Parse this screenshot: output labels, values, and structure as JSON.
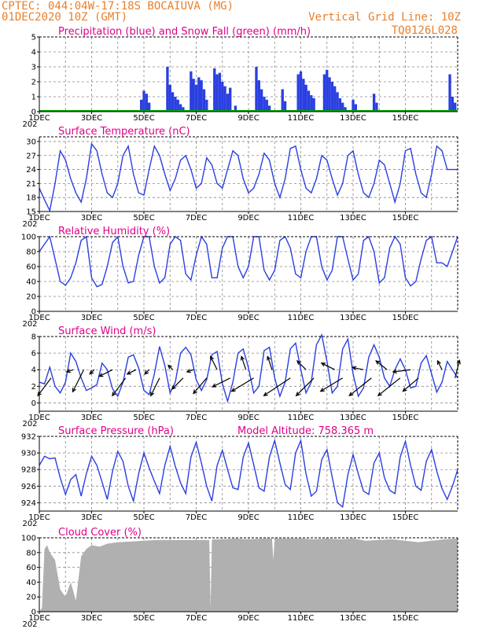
{
  "header": {
    "station": "CPTEC:  044:04W-17:18S  BOCAIUVA (MG)",
    "run": "01DEC2020 10Z (GMT)",
    "grid_note": "Vertical Grid Line: 10Z",
    "model": "TQ0126L028",
    "year_stub": "202"
  },
  "colors": {
    "header": "#e87f2a",
    "title": "#e0008a",
    "line": "#2a3fe0",
    "precip": "#2a3fe0",
    "snow": "#00aa00",
    "cloud": "#b0b0b0"
  },
  "x_ticks": [
    "1DEC",
    "3DEC",
    "5DEC",
    "7DEC",
    "9DEC",
    "11DEC",
    "13DEC",
    "15DEC"
  ],
  "chart_data": [
    {
      "id": "precip",
      "type": "bar",
      "title": "Precipitation (blue) and Snow Fall (green) (mm/h)",
      "ylim": [
        0,
        5
      ],
      "yticks": [
        0,
        1,
        2,
        3,
        4,
        5
      ],
      "x": [
        3.9,
        4.0,
        4.1,
        4.2,
        4.9,
        5.0,
        5.1,
        5.2,
        5.3,
        5.4,
        5.5,
        5.8,
        5.9,
        6.0,
        6.1,
        6.2,
        6.3,
        6.4,
        6.7,
        6.8,
        6.9,
        7.0,
        7.1,
        7.2,
        7.3,
        7.5,
        8.3,
        8.4,
        8.5,
        8.6,
        8.7,
        8.8,
        9.3,
        9.4,
        9.9,
        10.0,
        10.1,
        10.2,
        10.3,
        10.4,
        10.5,
        10.9,
        11.0,
        11.1,
        11.2,
        11.3,
        11.4,
        11.5,
        11.6,
        11.7,
        12.0,
        12.1,
        12.8,
        12.9,
        15.7,
        15.8,
        15.9
      ],
      "values": [
        0.8,
        1.4,
        1.2,
        0.6,
        3.0,
        1.8,
        1.3,
        1.0,
        0.8,
        0.5,
        0.3,
        2.7,
        2.2,
        1.8,
        2.3,
        2.1,
        1.5,
        0.8,
        2.9,
        2.5,
        2.6,
        2.0,
        1.7,
        1.2,
        1.6,
        0.4,
        3.0,
        2.1,
        1.5,
        1.0,
        0.8,
        0.4,
        1.5,
        0.7,
        2.5,
        2.7,
        2.2,
        1.8,
        1.4,
        1.1,
        0.9,
        2.5,
        2.8,
        2.3,
        2.0,
        1.7,
        1.3,
        0.9,
        0.6,
        0.3,
        0.8,
        0.5,
        1.2,
        0.6,
        2.5,
        1.0,
        0.6
      ],
      "snow": 0
    },
    {
      "id": "temp",
      "type": "line",
      "title": "Surface Temperature (nC)",
      "ylim": [
        15,
        31
      ],
      "yticks": [
        15,
        18,
        21,
        24,
        27,
        30
      ],
      "x": [
        0,
        0.2,
        0.4,
        0.6,
        0.8,
        1.0,
        1.2,
        1.4,
        1.6,
        1.8,
        2.0,
        2.2,
        2.4,
        2.6,
        2.8,
        3.0,
        3.2,
        3.4,
        3.6,
        3.8,
        4.0,
        4.2,
        4.4,
        4.6,
        4.8,
        5.0,
        5.2,
        5.4,
        5.6,
        5.8,
        6.0,
        6.2,
        6.4,
        6.6,
        6.8,
        7.0,
        7.2,
        7.4,
        7.6,
        7.8,
        8.0,
        8.2,
        8.4,
        8.6,
        8.8,
        9.0,
        9.2,
        9.4,
        9.6,
        9.8,
        10.0,
        10.2,
        10.4,
        10.6,
        10.8,
        11.0,
        11.2,
        11.4,
        11.6,
        11.8,
        12.0,
        12.2,
        12.4,
        12.6,
        12.8,
        13.0,
        13.2,
        13.4,
        13.6,
        13.8,
        14.0,
        14.2,
        14.4,
        14.6,
        14.8,
        15.0,
        15.2,
        15.4,
        15.6,
        15.8,
        16.0
      ],
      "values": [
        20,
        17.5,
        15.2,
        21,
        28,
        26,
        22,
        19,
        17,
        22,
        29.5,
        28,
        23,
        19,
        18,
        21,
        27,
        29,
        23,
        19,
        18.5,
        24,
        29,
        27,
        23,
        19.5,
        22,
        26,
        27,
        24,
        20,
        21,
        26.5,
        25,
        21,
        20,
        24,
        28,
        27,
        22,
        19,
        20,
        23,
        27.5,
        26,
        21,
        18,
        22,
        28.5,
        29,
        24,
        20,
        19,
        22,
        27,
        26,
        22,
        18.5,
        21,
        27,
        28,
        23,
        19,
        18,
        21,
        26,
        25,
        21,
        17,
        21,
        28,
        28.5,
        23,
        19,
        18,
        23,
        29,
        28,
        24,
        24,
        24
      ]
    },
    {
      "id": "rh",
      "type": "line",
      "title": "Relative Humidity (%)",
      "ylim": [
        0,
        100
      ],
      "yticks": [
        0,
        20,
        40,
        60,
        80,
        100
      ],
      "x": [
        0,
        0.2,
        0.4,
        0.6,
        0.8,
        1.0,
        1.2,
        1.4,
        1.6,
        1.8,
        2.0,
        2.2,
        2.4,
        2.6,
        2.8,
        3.0,
        3.2,
        3.4,
        3.6,
        3.8,
        4.0,
        4.2,
        4.4,
        4.6,
        4.8,
        5.0,
        5.2,
        5.4,
        5.6,
        5.8,
        6.0,
        6.2,
        6.4,
        6.6,
        6.8,
        7.0,
        7.2,
        7.4,
        7.6,
        7.8,
        8.0,
        8.2,
        8.4,
        8.6,
        8.8,
        9.0,
        9.2,
        9.4,
        9.6,
        9.8,
        10.0,
        10.2,
        10.4,
        10.6,
        10.8,
        11.0,
        11.2,
        11.4,
        11.6,
        11.8,
        12.0,
        12.2,
        12.4,
        12.6,
        12.8,
        13.0,
        13.2,
        13.4,
        13.6,
        13.8,
        14.0,
        14.2,
        14.4,
        14.6,
        14.8,
        15.0,
        15.2,
        15.4,
        15.6,
        15.8,
        16.0
      ],
      "values": [
        80,
        90,
        100,
        70,
        40,
        35,
        45,
        65,
        95,
        100,
        45,
        33,
        36,
        60,
        92,
        100,
        60,
        38,
        40,
        75,
        100,
        100,
        60,
        38,
        45,
        90,
        100,
        95,
        50,
        42,
        75,
        100,
        90,
        45,
        45,
        85,
        100,
        100,
        60,
        45,
        60,
        100,
        100,
        55,
        42,
        55,
        95,
        100,
        85,
        50,
        45,
        80,
        100,
        100,
        60,
        42,
        55,
        100,
        100,
        70,
        42,
        50,
        95,
        100,
        80,
        38,
        45,
        85,
        100,
        90,
        45,
        34,
        40,
        70,
        95,
        100,
        65,
        65,
        60,
        80,
        100
      ]
    },
    {
      "id": "wind",
      "type": "line",
      "title": "Surface Wind (m/s)",
      "ylim": [
        -1,
        8
      ],
      "yticks": [
        0,
        2,
        4,
        6,
        8
      ],
      "x": [
        0,
        0.2,
        0.4,
        0.6,
        0.8,
        1.0,
        1.2,
        1.4,
        1.6,
        1.8,
        2.0,
        2.2,
        2.4,
        2.6,
        2.8,
        3.0,
        3.2,
        3.4,
        3.6,
        3.8,
        4.0,
        4.2,
        4.4,
        4.6,
        4.8,
        5.0,
        5.2,
        5.4,
        5.6,
        5.8,
        6.0,
        6.2,
        6.4,
        6.6,
        6.8,
        7.0,
        7.2,
        7.4,
        7.6,
        7.8,
        8.0,
        8.2,
        8.4,
        8.6,
        8.8,
        9.0,
        9.2,
        9.4,
        9.6,
        9.8,
        10.0,
        10.2,
        10.4,
        10.6,
        10.8,
        11.0,
        11.2,
        11.4,
        11.6,
        11.8,
        12.0,
        12.2,
        12.4,
        12.6,
        12.8,
        13.0,
        13.2,
        13.4,
        13.6,
        13.8,
        14.0,
        14.2,
        14.4,
        14.6,
        14.8,
        15.0,
        15.2,
        15.4,
        15.6,
        15.8,
        16.0
      ],
      "values": [
        2.5,
        2.3,
        4.3,
        2.0,
        1.2,
        2.5,
        6.0,
        5.0,
        3.0,
        1.5,
        1.8,
        2.2,
        4.8,
        4.0,
        1.7,
        0.8,
        2.5,
        5.5,
        5.8,
        4.2,
        1.5,
        1.0,
        3.5,
        6.8,
        4.5,
        1.2,
        2.5,
        6.0,
        6.7,
        5.8,
        2.8,
        1.5,
        2.8,
        5.8,
        6.2,
        2.3,
        0.2,
        2.5,
        6.0,
        6.5,
        4.2,
        1.2,
        2.0,
        6.3,
        6.7,
        3.0,
        0.8,
        2.5,
        6.5,
        7.2,
        4.0,
        1.2,
        2.5,
        7.0,
        8.2,
        5.0,
        1.2,
        2.0,
        6.5,
        7.7,
        3.5,
        0.8,
        1.8,
        5.5,
        7.0,
        5.5,
        3.0,
        2.0,
        4.0,
        5.3,
        4.0,
        1.8,
        2.0,
        4.8,
        5.7,
        3.5,
        1.3,
        2.5,
        5.0,
        4.0,
        3.0
      ],
      "arrows": [
        {
          "x": 0.45,
          "s": 3,
          "dx": -0.6,
          "dy": 0.8
        },
        {
          "x": 1.3,
          "s": 4,
          "dx": -0.3,
          "dy": 0.1
        },
        {
          "x": 1.7,
          "s": 4,
          "dx": -0.5,
          "dy": 1.0
        },
        {
          "x": 2.1,
          "s": 4,
          "dx": -0.2,
          "dy": 0.2
        },
        {
          "x": 2.8,
          "s": 4,
          "dx": -0.6,
          "dy": 0.3
        },
        {
          "x": 3.3,
          "s": 3,
          "dx": -0.6,
          "dy": 0.8
        },
        {
          "x": 3.7,
          "s": 4,
          "dx": -0.4,
          "dy": 0.2
        },
        {
          "x": 4.2,
          "s": 4,
          "dx": -0.2,
          "dy": 0.2
        },
        {
          "x": 4.6,
          "s": 3,
          "dx": -0.4,
          "dy": 0.8
        },
        {
          "x": 5.1,
          "s": 4,
          "dx": -0.2,
          "dy": -0.2
        },
        {
          "x": 5.5,
          "s": 3,
          "dx": -0.5,
          "dy": 0.5
        },
        {
          "x": 5.9,
          "s": 4,
          "dx": -0.3,
          "dy": 0.1
        },
        {
          "x": 6.4,
          "s": 3,
          "dx": -0.6,
          "dy": 0.7
        },
        {
          "x": 6.8,
          "s": 4,
          "dx": -0.3,
          "dy": -0.6
        },
        {
          "x": 7.3,
          "s": 3,
          "dx": -0.8,
          "dy": 0.4
        },
        {
          "x": 7.9,
          "s": 4,
          "dx": -0.2,
          "dy": -0.6
        },
        {
          "x": 8.2,
          "s": 3,
          "dx": -1.0,
          "dy": 0.6
        },
        {
          "x": 8.9,
          "s": 4,
          "dx": -0.2,
          "dy": -0.6
        },
        {
          "x": 9.6,
          "s": 3,
          "dx": -1.2,
          "dy": 0.8
        },
        {
          "x": 10.2,
          "s": 4,
          "dx": -0.4,
          "dy": -0.4
        },
        {
          "x": 10.5,
          "s": 3,
          "dx": -0.8,
          "dy": 0.8
        },
        {
          "x": 11.3,
          "s": 4,
          "dx": -0.6,
          "dy": -0.3
        },
        {
          "x": 11.6,
          "s": 3,
          "dx": -1.0,
          "dy": 0.6
        },
        {
          "x": 12.4,
          "s": 4,
          "dx": -0.5,
          "dy": -0.1
        },
        {
          "x": 12.7,
          "s": 3,
          "dx": -1.0,
          "dy": 0.8
        },
        {
          "x": 13.3,
          "s": 4,
          "dx": -0.5,
          "dy": -0.4
        },
        {
          "x": 13.8,
          "s": 3,
          "dx": -1.0,
          "dy": 0.8
        },
        {
          "x": 14.2,
          "s": 4,
          "dx": -0.8,
          "dy": 0.1
        },
        {
          "x": 14.5,
          "s": 3,
          "dx": -0.7,
          "dy": 0.6
        },
        {
          "x": 15.4,
          "s": 4,
          "dx": -0.2,
          "dy": -0.4
        },
        {
          "x": 15.9,
          "s": 3,
          "dx": 0.2,
          "dy": -0.8
        }
      ]
    },
    {
      "id": "press",
      "type": "line",
      "title": "Surface Pressure (hPa)",
      "note": "Model Altitude: 758.365 m",
      "ylim": [
        923,
        932
      ],
      "yticks": [
        924,
        926,
        928,
        930,
        932
      ],
      "x": [
        0,
        0.2,
        0.4,
        0.6,
        0.8,
        1.0,
        1.2,
        1.4,
        1.6,
        1.8,
        2.0,
        2.2,
        2.4,
        2.6,
        2.8,
        3.0,
        3.2,
        3.4,
        3.6,
        3.8,
        4.0,
        4.2,
        4.4,
        4.6,
        4.8,
        5.0,
        5.2,
        5.4,
        5.6,
        5.8,
        6.0,
        6.2,
        6.4,
        6.6,
        6.8,
        7.0,
        7.2,
        7.4,
        7.6,
        7.8,
        8.0,
        8.2,
        8.4,
        8.6,
        8.8,
        9.0,
        9.2,
        9.4,
        9.6,
        9.8,
        10.0,
        10.2,
        10.4,
        10.6,
        10.8,
        11.0,
        11.2,
        11.4,
        11.6,
        11.8,
        12.0,
        12.2,
        12.4,
        12.6,
        12.8,
        13.0,
        13.2,
        13.4,
        13.6,
        13.8,
        14.0,
        14.2,
        14.4,
        14.6,
        14.8,
        15.0,
        15.2,
        15.4,
        15.6,
        15.8,
        16.0
      ],
      "values": [
        928.5,
        929.6,
        929.3,
        929.4,
        927,
        925,
        926.8,
        927.4,
        924.8,
        927.5,
        929.6,
        928.5,
        926.5,
        924.4,
        927.8,
        930.2,
        929,
        926,
        924.2,
        927.5,
        930,
        928.2,
        926.6,
        925.1,
        928.5,
        930.8,
        928.4,
        926.4,
        925.1,
        929.5,
        931.3,
        928.8,
        926,
        924.2,
        928.5,
        930.3,
        928,
        925.8,
        925.6,
        929.5,
        931.2,
        928.6,
        925.8,
        925.4,
        929.5,
        931.5,
        928.8,
        926.2,
        925.6,
        930,
        931.5,
        927.5,
        924.8,
        925.4,
        929.2,
        930.4,
        927.1,
        924,
        923.5,
        927.4,
        929.8,
        927.5,
        925.4,
        925,
        928.8,
        930,
        927,
        925.5,
        925.1,
        929.5,
        931.4,
        928.5,
        926,
        925.5,
        929,
        930.4,
        927.8,
        925.7,
        924.4,
        926,
        928
      ]
    },
    {
      "id": "cloud",
      "type": "area",
      "title": "Cloud Cover (%)",
      "ylim": [
        0,
        100
      ],
      "yticks": [
        0,
        20,
        40,
        60,
        80,
        100
      ],
      "x": [
        0,
        0.1,
        0.2,
        0.3,
        0.4,
        0.6,
        0.8,
        1.0,
        1.2,
        1.4,
        1.6,
        1.8,
        2.0,
        2.3,
        2.6,
        3.0,
        3.5,
        4.0,
        4.5,
        5.0,
        5.5,
        6.0,
        6.5,
        6.55,
        6.6,
        6.65,
        7.0,
        7.5,
        8.0,
        8.5,
        8.9,
        8.95,
        9.0,
        9.5,
        10.0,
        10.5,
        11.0,
        11.5,
        12.0,
        12.5,
        13.0,
        13.5,
        14.0,
        14.5,
        15.0,
        15.5,
        16.0
      ],
      "values": [
        0,
        5,
        85,
        90,
        80,
        70,
        30,
        20,
        40,
        15,
        75,
        85,
        90,
        88,
        92,
        94,
        95,
        96,
        97,
        97,
        97,
        97,
        97,
        5,
        97,
        98,
        98,
        99,
        98,
        99,
        99,
        70,
        99,
        99,
        99,
        98,
        99,
        98,
        99,
        96,
        97,
        98,
        96,
        94,
        96,
        98,
        99
      ]
    }
  ]
}
